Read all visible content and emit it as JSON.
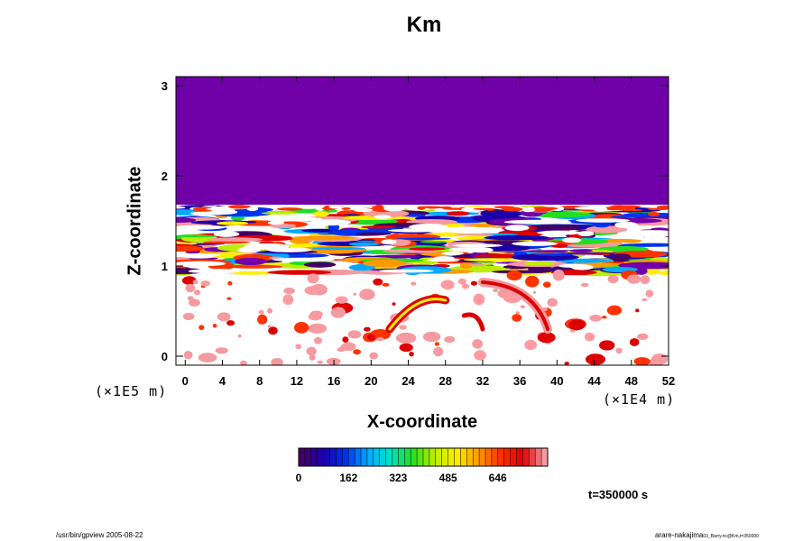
{
  "chart_data": {
    "type": "heatmap",
    "title": "Km",
    "xlabel": "X-coordinate",
    "ylabel": "Z-coordinate",
    "x_unit": "(×1E4 m)",
    "y_unit": "(×1E5 m)",
    "xlim": [
      -1,
      52
    ],
    "ylim": [
      -0.1,
      3.1
    ],
    "x_ticks": [
      0,
      4,
      8,
      12,
      16,
      20,
      24,
      28,
      32,
      36,
      40,
      44,
      48,
      52
    ],
    "y_ticks": [
      0,
      1,
      2,
      3
    ],
    "colorbar": {
      "ticks": [
        "0",
        "162",
        "323",
        "485",
        "646"
      ],
      "colors": [
        "#440066",
        "#1a00aa",
        "#0033ee",
        "#00aaff",
        "#00e0c8",
        "#22dd22",
        "#bbee00",
        "#ffee00",
        "#ff9900",
        "#ff3300",
        "#dd0000",
        "#f59aa0"
      ]
    },
    "field": {
      "uniform_region": {
        "z_from": 1.68,
        "z_to": 3.1,
        "color": "#7000a8"
      },
      "turbulent_band_z": [
        0.9,
        1.68
      ],
      "scattered_patches_z": [
        -0.1,
        0.9
      ]
    }
  },
  "annotation": {
    "time": "t=350000 s"
  },
  "footer": {
    "left": "/usr/bin/gpview 2005-08-22",
    "right_main": "arare-nakajima",
    "right_sub": "03_Barry.nc@Km,t=350000"
  }
}
